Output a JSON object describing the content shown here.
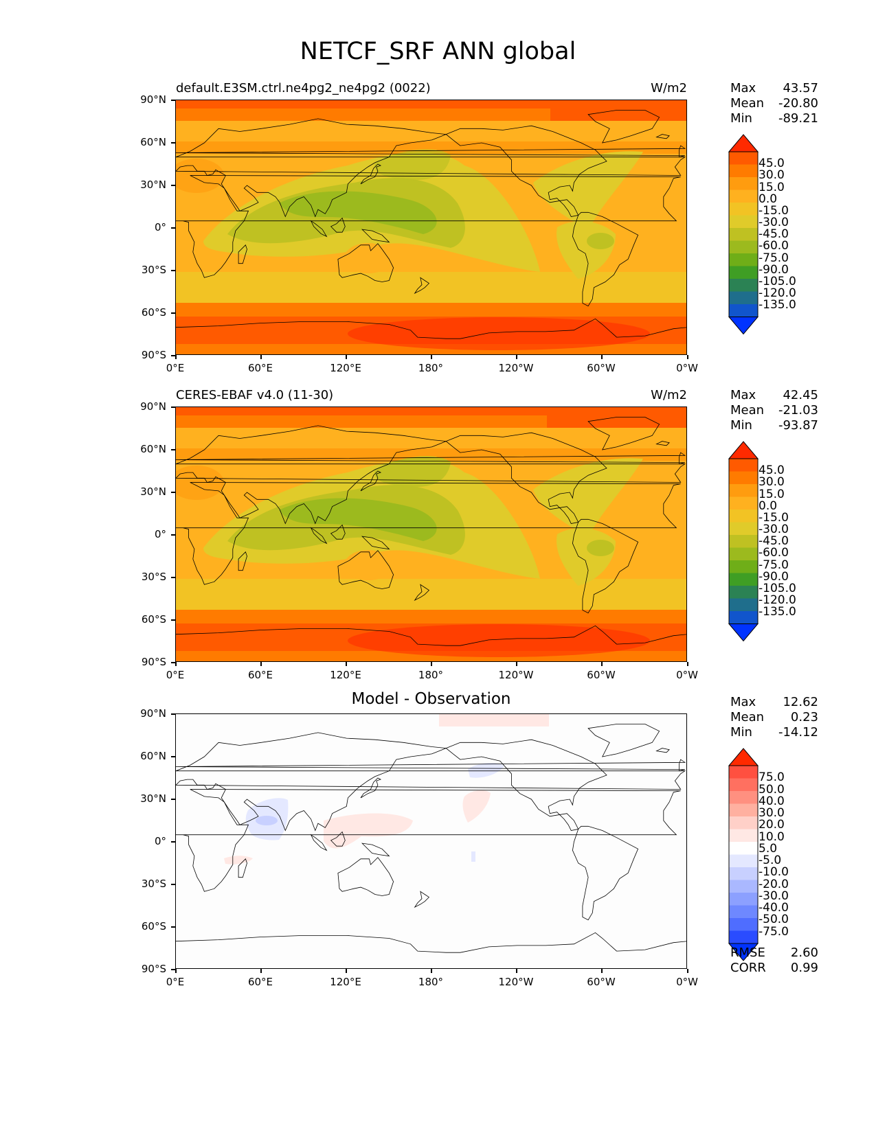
{
  "figure": {
    "title": "NETCF_SRF ANN global"
  },
  "axes": {
    "lat_labels": [
      "90°N",
      "60°N",
      "30°N",
      "0°",
      "30°S",
      "60°S",
      "90°S"
    ],
    "lon_labels": [
      "0°E",
      "60°E",
      "120°E",
      "180°",
      "120°W",
      "60°W",
      "0°W"
    ]
  },
  "panels": [
    {
      "title_left": "default.E3SM.ctrl.ne4pg2_ne4pg2 (0022)",
      "title_center": "",
      "units": "W/m2",
      "stats": {
        "max_label": "Max",
        "max": "43.57",
        "mean_label": "Mean",
        "mean": "-20.80",
        "min_label": "Min",
        "min": "-89.21"
      },
      "colorbar_levels": [
        "45.0",
        "30.0",
        "15.0",
        "0.0",
        "-15.0",
        "-30.0",
        "-45.0",
        "-60.0",
        "-75.0",
        "-90.0",
        "-105.0",
        "-120.0",
        "-135.0"
      ]
    },
    {
      "title_left": "CERES-EBAF v4.0 (11-30)",
      "title_center": "",
      "units": "W/m2",
      "stats": {
        "max_label": "Max",
        "max": "42.45",
        "mean_label": "Mean",
        "mean": "-21.03",
        "min_label": "Min",
        "min": "-93.87"
      },
      "colorbar_levels": [
        "45.0",
        "30.0",
        "15.0",
        "0.0",
        "-15.0",
        "-30.0",
        "-45.0",
        "-60.0",
        "-75.0",
        "-90.0",
        "-105.0",
        "-120.0",
        "-135.0"
      ]
    },
    {
      "title_left": "",
      "title_center": "Model - Observation",
      "units": "",
      "stats": {
        "max_label": "Max",
        "max": "12.62",
        "mean_label": "Mean",
        "mean": "0.23",
        "min_label": "Min",
        "min": "-14.12"
      },
      "colorbar_levels": [
        "75.0",
        "50.0",
        "40.0",
        "30.0",
        "20.0",
        "10.0",
        "5.0",
        "-5.0",
        "-10.0",
        "-20.0",
        "-30.0",
        "-40.0",
        "-50.0",
        "-75.0"
      ],
      "metrics": {
        "rmse_label": "RMSE",
        "rmse": "2.60",
        "corr_label": "CORR",
        "corr": "0.99"
      }
    }
  ],
  "colors": {
    "abs_scale": [
      "#ff2a00",
      "#ff5a00",
      "#ff7b00",
      "#ff9c0f",
      "#ffb11f",
      "#f2c324",
      "#e0cb2a",
      "#bfc122",
      "#9cba1e",
      "#6fae18",
      "#3f9e24",
      "#2b8254",
      "#1f6e8c",
      "#1155cc",
      "#0033ff"
    ],
    "diff_scale": [
      "#ff2a00",
      "#ff5040",
      "#ff7060",
      "#ff9080",
      "#ffb0a0",
      "#ffd0c8",
      "#ffe8e4",
      "#ffffff",
      "#e4e8ff",
      "#c8d0ff",
      "#aab8ff",
      "#8ca0ff",
      "#6e88ff",
      "#4f6dff",
      "#2a4cff",
      "#0033ff"
    ]
  },
  "map_data": {
    "regions": [
      "global"
    ],
    "variable": "NETCF_SRF",
    "season": "ANN"
  }
}
